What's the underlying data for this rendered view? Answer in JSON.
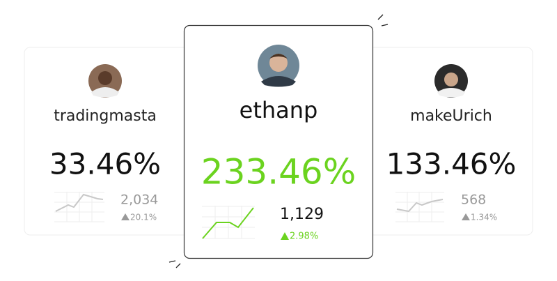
{
  "cards": [
    {
      "username": "tradingmasta",
      "return": "33.46%",
      "count": "2,034",
      "change": "20.1%"
    },
    {
      "username": "ethanp",
      "return": "233.46%",
      "count": "1,129",
      "change": "2.98%"
    },
    {
      "username": "makeUrich",
      "return": "133.46%",
      "count": "568",
      "change": "1.34%"
    }
  ]
}
